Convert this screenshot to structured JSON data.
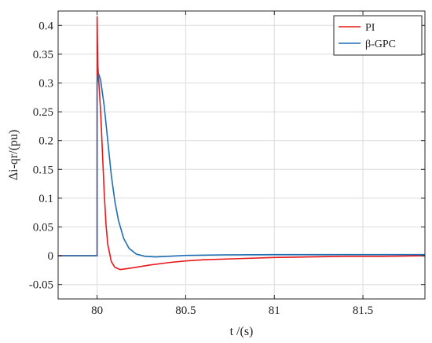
{
  "chart_data": {
    "type": "line",
    "xlabel": "t /(s)",
    "ylabel": "Δi-qr/(pu)",
    "xlim": [
      79.78,
      81.85
    ],
    "ylim": [
      -0.075,
      0.425
    ],
    "xticks": [
      80,
      80.5,
      81,
      81.5
    ],
    "xtick_labels": [
      "80",
      "80.5",
      "81",
      "81.5"
    ],
    "yticks": [
      -0.05,
      0,
      0.05,
      0.1,
      0.15,
      0.2,
      0.25,
      0.3,
      0.35,
      0.4
    ],
    "ytick_labels": [
      "-0.05",
      "0",
      "0.05",
      "0.1",
      "0.15",
      "0.2",
      "0.25",
      "0.3",
      "0.35",
      "0.4"
    ],
    "grid": true,
    "legend_position": "top-right",
    "series": [
      {
        "name": "PI",
        "color": "#e8191c",
        "points": [
          [
            79.78,
            0
          ],
          [
            80.0,
            0
          ],
          [
            80.0,
            0.415
          ],
          [
            80.004,
            0.33
          ],
          [
            80.008,
            0.31
          ],
          [
            80.02,
            0.25
          ],
          [
            80.03,
            0.18
          ],
          [
            80.04,
            0.11
          ],
          [
            80.05,
            0.055
          ],
          [
            80.06,
            0.02
          ],
          [
            80.08,
            -0.01
          ],
          [
            80.1,
            -0.02
          ],
          [
            80.13,
            -0.024
          ],
          [
            80.2,
            -0.021
          ],
          [
            80.3,
            -0.016
          ],
          [
            80.4,
            -0.012
          ],
          [
            80.5,
            -0.009
          ],
          [
            80.6,
            -0.007
          ],
          [
            80.8,
            -0.005
          ],
          [
            81.0,
            -0.003
          ],
          [
            81.2,
            -0.002
          ],
          [
            81.4,
            -0.001
          ],
          [
            81.6,
            -0.001
          ],
          [
            81.85,
            0
          ]
        ]
      },
      {
        "name": "β-GPC",
        "color": "#1f6fb4",
        "points": [
          [
            79.78,
            0
          ],
          [
            80.0,
            0
          ],
          [
            80.0,
            0.3
          ],
          [
            80.01,
            0.315
          ],
          [
            80.02,
            0.305
          ],
          [
            80.04,
            0.26
          ],
          [
            80.06,
            0.2
          ],
          [
            80.08,
            0.14
          ],
          [
            80.1,
            0.095
          ],
          [
            80.12,
            0.062
          ],
          [
            80.15,
            0.03
          ],
          [
            80.18,
            0.013
          ],
          [
            80.22,
            0.003
          ],
          [
            80.27,
            -0.001
          ],
          [
            80.33,
            -0.002
          ],
          [
            80.4,
            -0.001
          ],
          [
            80.5,
            0.0005
          ],
          [
            80.7,
            0.0015
          ],
          [
            81.0,
            0.002
          ],
          [
            81.3,
            0.002
          ],
          [
            81.6,
            0.002
          ],
          [
            81.85,
            0.002
          ]
        ]
      }
    ]
  }
}
